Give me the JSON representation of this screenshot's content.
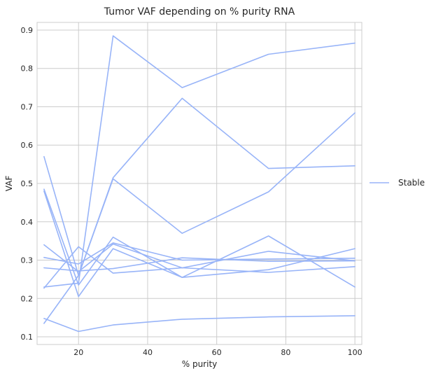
{
  "chart_data": {
    "type": "line",
    "title": "Tumor VAF depending on % purity RNA",
    "xlabel": "% purity",
    "ylabel": "VAF",
    "xlim": [
      8,
      102
    ],
    "ylim": [
      0.08,
      0.92
    ],
    "x_ticks": [
      20,
      40,
      60,
      80,
      100
    ],
    "y_ticks": [
      0.1,
      0.2,
      0.3,
      0.4,
      0.5,
      0.6,
      0.7,
      0.8,
      0.9
    ],
    "x_tick_labels": [
      "20",
      "40",
      "60",
      "80",
      "100"
    ],
    "y_tick_labels": [
      "0.1",
      "0.2",
      "0.3",
      "0.4",
      "0.5",
      "0.6",
      "0.7",
      "0.8",
      "0.9"
    ],
    "grid": true,
    "legend_position": "right",
    "legend": [
      {
        "label": "Stable",
        "color": "#98b4f8"
      }
    ],
    "color": "#98b4f8",
    "x": [
      10,
      20,
      30,
      50,
      75,
      100
    ],
    "series": [
      {
        "values": [
          0.23,
          0.24,
          0.885,
          0.75,
          0.837,
          0.866
        ]
      },
      {
        "values": [
          0.135,
          0.26,
          0.515,
          0.722,
          0.539,
          0.546
        ]
      },
      {
        "values": [
          0.57,
          0.26,
          0.512,
          0.37,
          0.478,
          0.684
        ]
      },
      {
        "values": [
          0.485,
          0.235,
          0.36,
          0.255,
          0.363,
          0.23
        ]
      },
      {
        "values": [
          0.48,
          0.205,
          0.33,
          0.255,
          0.275,
          0.33
        ]
      },
      {
        "values": [
          0.34,
          0.27,
          0.342,
          0.28,
          0.323,
          0.298
        ]
      },
      {
        "values": [
          0.307,
          0.29,
          0.345,
          0.3,
          0.303,
          0.305
        ]
      },
      {
        "values": [
          0.28,
          0.272,
          0.278,
          0.306,
          0.297,
          0.298
        ]
      },
      {
        "values": [
          0.227,
          0.335,
          0.266,
          0.28,
          0.268,
          0.283
        ]
      },
      {
        "values": [
          0.148,
          0.114,
          0.131,
          0.146,
          0.152,
          0.155
        ]
      }
    ]
  }
}
